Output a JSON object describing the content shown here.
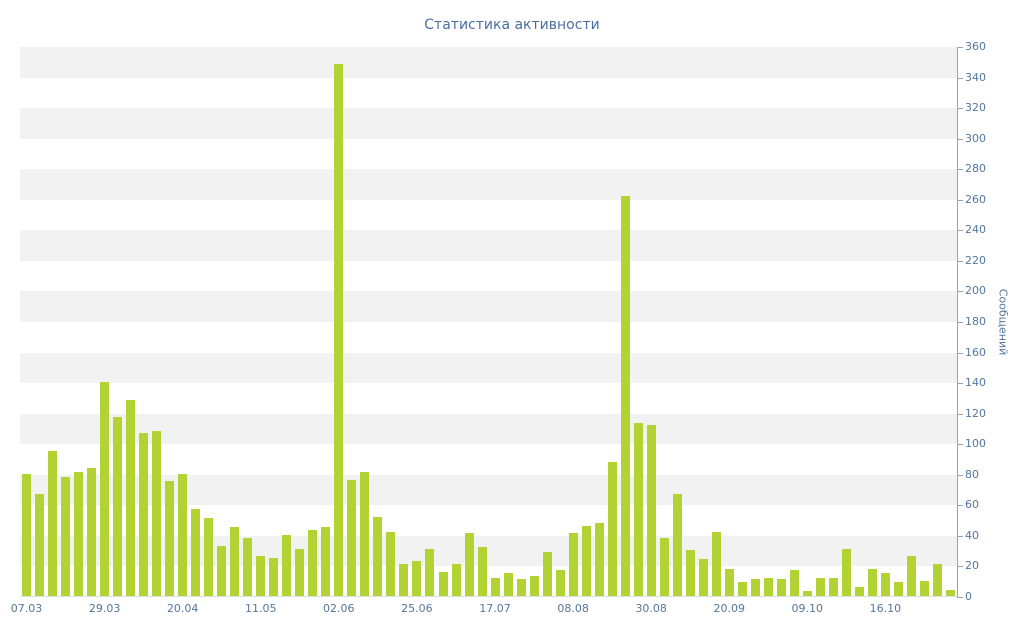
{
  "chart_data": {
    "type": "bar",
    "title": "Статистика активности",
    "xlabel": "",
    "ylabel": "Сообщений",
    "ylim": [
      0,
      360
    ],
    "ytick_step": 20,
    "grid": "alternating-horizontal-bands",
    "legend": "none",
    "x_tick_labels": [
      "07.03",
      "29.03",
      "20.04",
      "11.05",
      "02.06",
      "25.06",
      "17.07",
      "08.08",
      "30.08",
      "20.09",
      "09.10",
      "16.10"
    ],
    "x_tick_every": 6,
    "values": [
      80,
      67,
      95,
      78,
      81,
      84,
      140,
      117,
      128,
      107,
      108,
      75,
      80,
      57,
      51,
      33,
      45,
      38,
      26,
      25,
      40,
      31,
      43,
      45,
      348,
      76,
      81,
      52,
      42,
      21,
      23,
      31,
      16,
      21,
      41,
      32,
      12,
      15,
      11,
      13,
      29,
      17,
      41,
      46,
      48,
      88,
      262,
      113,
      112,
      38,
      67,
      30,
      24,
      42,
      18,
      9,
      11,
      12,
      11,
      17,
      3,
      12,
      12,
      31,
      6,
      18,
      15,
      9,
      26,
      10,
      21,
      4
    ],
    "bar_color": "#b3d334",
    "band_color": "#f2f2f2",
    "title_color": "#4a6f9f",
    "label_color": "#54779e",
    "axis_color": "#9aa3ab"
  }
}
